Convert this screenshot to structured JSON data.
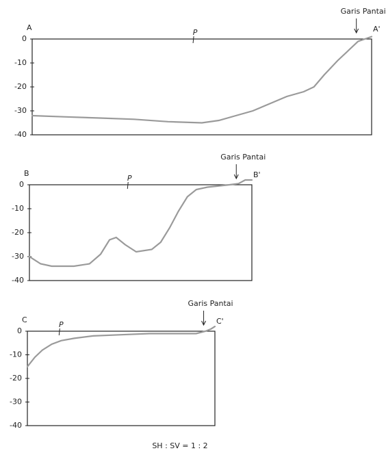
{
  "chart_data": [
    {
      "type": "line",
      "start_label": "A",
      "end_label": "A'",
      "annotation": "Garis Pantai",
      "marker_label": "P",
      "x": [
        0,
        10,
        20,
        30,
        40,
        50,
        55,
        60,
        65,
        70,
        75,
        80,
        83,
        86,
        90,
        93,
        96,
        98,
        100
      ],
      "values": [
        -32,
        -32.5,
        -33,
        -33.5,
        -34.5,
        -35,
        -34,
        -32,
        -30,
        -27,
        -24,
        -22,
        -20,
        -15,
        -9,
        -5,
        -1,
        0,
        1
      ],
      "color": "#9a9a9a",
      "xlim": [
        0,
        100
      ],
      "ylim": [
        -40,
        0
      ],
      "yticks": [
        0,
        -10,
        -20,
        -30,
        -40
      ]
    },
    {
      "type": "line",
      "start_label": "B",
      "end_label": "B'",
      "annotation": "Garis Pantai",
      "marker_label": "P",
      "x": [
        0,
        5,
        10,
        20,
        27,
        32,
        36,
        39,
        43,
        48,
        55,
        59,
        63,
        67,
        71,
        75,
        80,
        90,
        94,
        97,
        100
      ],
      "values": [
        -30,
        -33,
        -34,
        -34,
        -33,
        -29,
        -23,
        -22,
        -25,
        -28,
        -27,
        -24,
        -18,
        -11,
        -5,
        -2,
        -1,
        0,
        0.5,
        2,
        2
      ],
      "color": "#9a9a9a",
      "xlim": [
        0,
        100
      ],
      "ylim": [
        -40,
        0
      ],
      "yticks": [
        0,
        -10,
        -20,
        -30,
        -40
      ]
    },
    {
      "type": "line",
      "start_label": "C",
      "end_label": "C'",
      "annotation": "Garis Pantai",
      "marker_label": "P",
      "x": [
        0,
        4,
        8,
        13,
        18,
        25,
        35,
        50,
        65,
        80,
        90,
        95,
        98,
        100
      ],
      "values": [
        -15,
        -11,
        -8,
        -5.5,
        -4,
        -3,
        -2,
        -1.5,
        -1,
        -1,
        -1,
        0,
        1,
        2
      ],
      "color": "#9a9a9a",
      "xlim": [
        0,
        100
      ],
      "ylim": [
        -40,
        0
      ],
      "yticks": [
        0,
        -10,
        -20,
        -30,
        -40
      ]
    }
  ],
  "footer": "SH : SV = 1 : 2"
}
